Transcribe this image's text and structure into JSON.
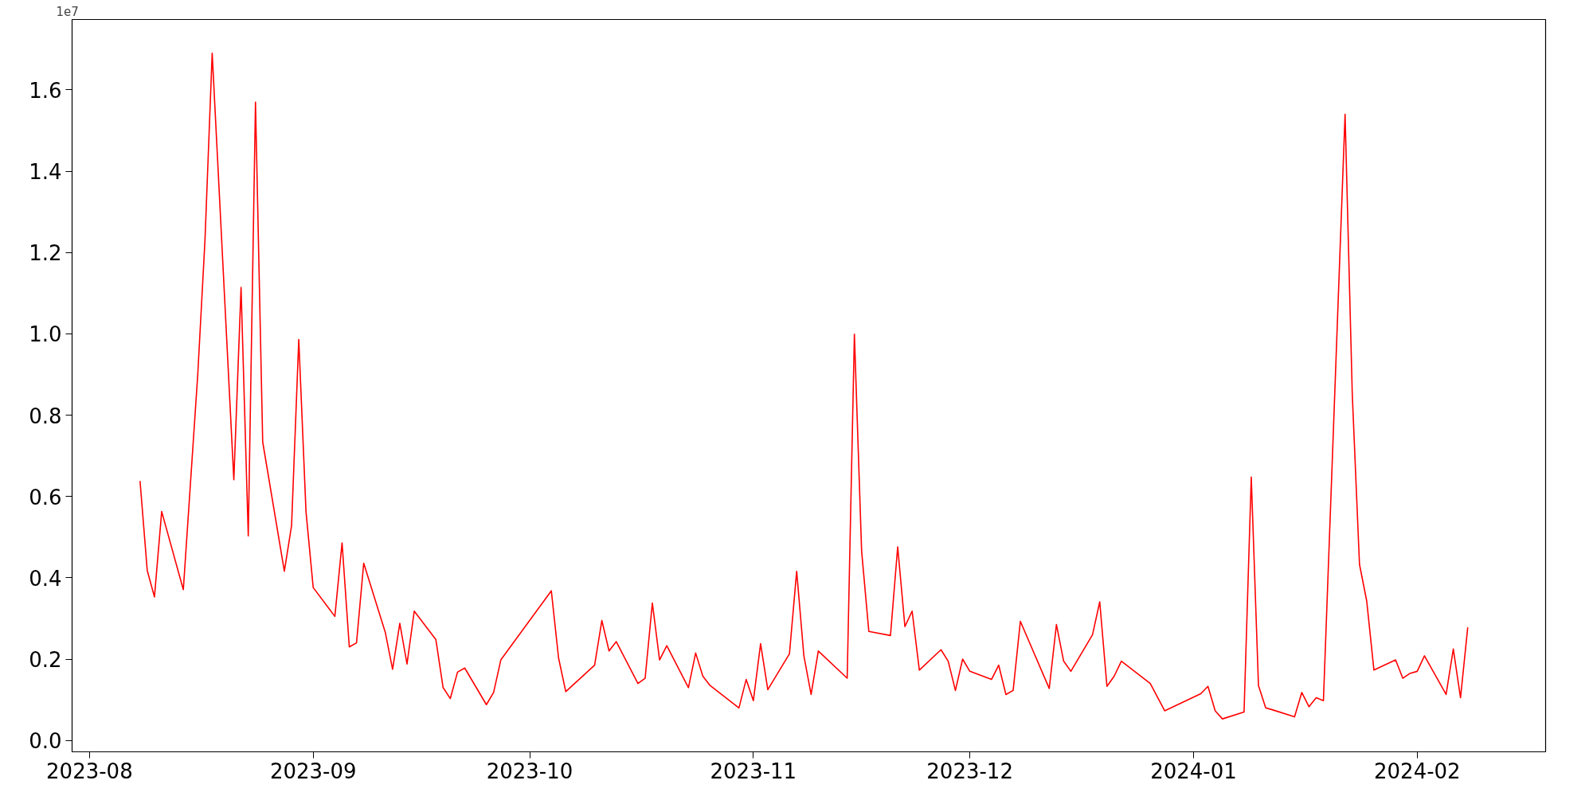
{
  "chart_data": {
    "type": "line",
    "x": [
      "2023-08-08",
      "2023-08-09",
      "2023-08-10",
      "2023-08-11",
      "2023-08-14",
      "2023-08-16",
      "2023-08-17",
      "2023-08-18",
      "2023-08-21",
      "2023-08-22",
      "2023-08-23",
      "2023-08-24",
      "2023-08-25",
      "2023-08-28",
      "2023-08-29",
      "2023-08-30",
      "2023-08-31",
      "2023-09-01",
      "2023-09-04",
      "2023-09-05",
      "2023-09-06",
      "2023-09-07",
      "2023-09-08",
      "2023-09-11",
      "2023-09-12",
      "2023-09-13",
      "2023-09-14",
      "2023-09-15",
      "2023-09-18",
      "2023-09-19",
      "2023-09-20",
      "2023-09-21",
      "2023-09-22",
      "2023-09-25",
      "2023-09-26",
      "2023-09-27",
      "2023-10-04",
      "2023-10-05",
      "2023-10-06",
      "2023-10-10",
      "2023-10-11",
      "2023-10-12",
      "2023-10-13",
      "2023-10-16",
      "2023-10-17",
      "2023-10-18",
      "2023-10-19",
      "2023-10-20",
      "2023-10-23",
      "2023-10-24",
      "2023-10-25",
      "2023-10-26",
      "2023-10-30",
      "2023-10-31",
      "2023-11-01",
      "2023-11-02",
      "2023-11-03",
      "2023-11-06",
      "2023-11-07",
      "2023-11-08",
      "2023-11-09",
      "2023-11-10",
      "2023-11-14",
      "2023-11-15",
      "2023-11-16",
      "2023-11-17",
      "2023-11-20",
      "2023-11-21",
      "2023-11-22",
      "2023-11-23",
      "2023-11-24",
      "2023-11-27",
      "2023-11-28",
      "2023-11-29",
      "2023-11-30",
      "2023-12-01",
      "2023-12-04",
      "2023-12-05",
      "2023-12-06",
      "2023-12-07",
      "2023-12-08",
      "2023-12-12",
      "2023-12-13",
      "2023-12-14",
      "2023-12-15",
      "2023-12-18",
      "2023-12-19",
      "2023-12-20",
      "2023-12-21",
      "2023-12-22",
      "2023-12-26",
      "2023-12-28",
      "2024-01-02",
      "2024-01-03",
      "2024-01-04",
      "2024-01-05",
      "2024-01-08",
      "2024-01-09",
      "2024-01-10",
      "2024-01-11",
      "2024-01-12",
      "2024-01-15",
      "2024-01-16",
      "2024-01-17",
      "2024-01-18",
      "2024-01-19",
      "2024-01-22",
      "2024-01-23",
      "2024-01-24",
      "2024-01-25",
      "2024-01-26",
      "2024-01-29",
      "2024-01-30",
      "2024-01-31",
      "2024-02-01",
      "2024-02-02",
      "2024-02-05",
      "2024-02-06",
      "2024-02-07",
      "2024-02-08"
    ],
    "series": [
      {
        "color": "#ff0000",
        "values": [
          0.638,
          0.418,
          0.353,
          0.563,
          0.371,
          0.9,
          1.23,
          1.69,
          0.641,
          1.114,
          0.503,
          1.57,
          0.734,
          0.416,
          0.528,
          0.986,
          0.563,
          0.376,
          0.305,
          0.486,
          0.23,
          0.24,
          0.436,
          0.265,
          0.175,
          0.288,
          0.188,
          0.318,
          0.248,
          0.13,
          0.103,
          0.168,
          0.178,
          0.088,
          0.118,
          0.198,
          0.368,
          0.203,
          0.12,
          0.185,
          0.295,
          0.22,
          0.243,
          0.14,
          0.153,
          0.338,
          0.198,
          0.233,
          0.13,
          0.215,
          0.158,
          0.135,
          0.08,
          0.15,
          0.098,
          0.238,
          0.125,
          0.213,
          0.416,
          0.208,
          0.113,
          0.22,
          0.153,
          0.999,
          0.466,
          0.268,
          0.258,
          0.476,
          0.28,
          0.318,
          0.173,
          0.223,
          0.195,
          0.123,
          0.2,
          0.17,
          0.15,
          0.185,
          0.113,
          0.123,
          0.293,
          0.128,
          0.285,
          0.195,
          0.17,
          0.26,
          0.341,
          0.133,
          0.158,
          0.195,
          0.14,
          0.073,
          0.115,
          0.133,
          0.073,
          0.053,
          0.07,
          0.648,
          0.135,
          0.08,
          0.075,
          0.058,
          0.118,
          0.083,
          0.105,
          0.098,
          1.54,
          0.851,
          0.433,
          0.343,
          0.173,
          0.198,
          0.153,
          0.165,
          0.17,
          0.208,
          0.113,
          0.225,
          0.105,
          0.278
        ]
      }
    ],
    "xlim": [
      "2023-07-29T14:00",
      "2024-02-18T19:00"
    ],
    "xticks": [
      {
        "value": "2023-08-01",
        "label": "2023-08"
      },
      {
        "value": "2023-09-01",
        "label": "2023-09"
      },
      {
        "value": "2023-10-01",
        "label": "2023-10"
      },
      {
        "value": "2023-11-01",
        "label": "2023-11"
      },
      {
        "value": "2023-12-01",
        "label": "2023-12"
      },
      {
        "value": "2024-01-01",
        "label": "2024-01"
      },
      {
        "value": "2024-02-01",
        "label": "2024-02"
      }
    ],
    "ylim": [
      -0.028,
      1.773
    ],
    "yticks": [
      {
        "value": 0,
        "label": "0.0"
      },
      0.2,
      0.4,
      0.6,
      0.8,
      {
        "value": 1,
        "label": "1.0"
      },
      1.2,
      1.4,
      1.6
    ],
    "annotations": [
      "1e7"
    ],
    "line_style": "solid"
  }
}
